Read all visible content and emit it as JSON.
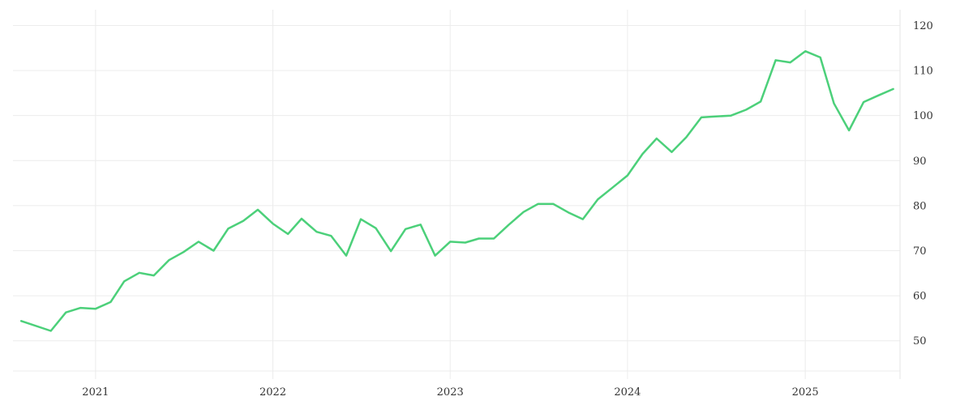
{
  "chart_data": {
    "type": "line",
    "title": "",
    "xlabel": "",
    "ylabel": "",
    "x_ticks": [
      "2021",
      "2022",
      "2023",
      "2024",
      "2025"
    ],
    "y_ticks": [
      50,
      60,
      70,
      80,
      90,
      100,
      110,
      120
    ],
    "xlim": [
      "2020-07-15",
      "2025-07-15"
    ],
    "ylim": [
      41.5,
      123.5
    ],
    "y_axis_position": "right",
    "grid": true,
    "legend": "none",
    "colors": {
      "line": "#4cd07a"
    },
    "series": [
      {
        "x": [
          "2020-08-01",
          "2020-10-01",
          "2020-11-01",
          "2020-12-01",
          "2021-01-01",
          "2021-02-01",
          "2021-03-01",
          "2021-04-01",
          "2021-05-01",
          "2021-06-01",
          "2021-07-01",
          "2021-08-01",
          "2021-09-01",
          "2021-10-01",
          "2021-11-01",
          "2021-12-01",
          "2022-01-01",
          "2022-02-01",
          "2022-03-01",
          "2022-04-01",
          "2022-05-01",
          "2022-06-01",
          "2022-07-01",
          "2022-08-01",
          "2022-09-01",
          "2022-10-01",
          "2022-11-01",
          "2022-12-01",
          "2023-01-01",
          "2023-02-01",
          "2023-03-01",
          "2023-04-01",
          "2023-05-01",
          "2023-06-01",
          "2023-07-01",
          "2023-08-01",
          "2023-09-01",
          "2023-10-01",
          "2023-11-01",
          "2023-12-01",
          "2024-01-01",
          "2024-02-01",
          "2024-03-01",
          "2024-04-01",
          "2024-05-01",
          "2024-06-01",
          "2024-07-01",
          "2024-08-01",
          "2024-09-01",
          "2024-10-01",
          "2024-11-01",
          "2024-12-01",
          "2025-01-01",
          "2025-02-01",
          "2025-03-01",
          "2025-04-01",
          "2025-05-01",
          "2025-06-01",
          "2025-07-01"
        ],
        "values": [
          54.4,
          52.2,
          56.3,
          57.3,
          57.1,
          58.6,
          63.2,
          65.1,
          64.5,
          67.9,
          69.7,
          72.0,
          70.0,
          74.9,
          76.6,
          79.1,
          76.0,
          73.7,
          77.1,
          74.2,
          73.3,
          68.9,
          77.0,
          75.0,
          69.9,
          74.8,
          75.8,
          68.9,
          72.0,
          71.8,
          72.7,
          72.7,
          75.7,
          78.6,
          80.4,
          80.4,
          78.5,
          77.0,
          81.4,
          84.0,
          86.7,
          91.5,
          94.9,
          91.9,
          95.2,
          99.6,
          99.8,
          100.0,
          101.3,
          103.1,
          112.3,
          111.8,
          114.3,
          112.9,
          102.7,
          96.7,
          103.0,
          104.5,
          105.9
        ]
      }
    ]
  }
}
